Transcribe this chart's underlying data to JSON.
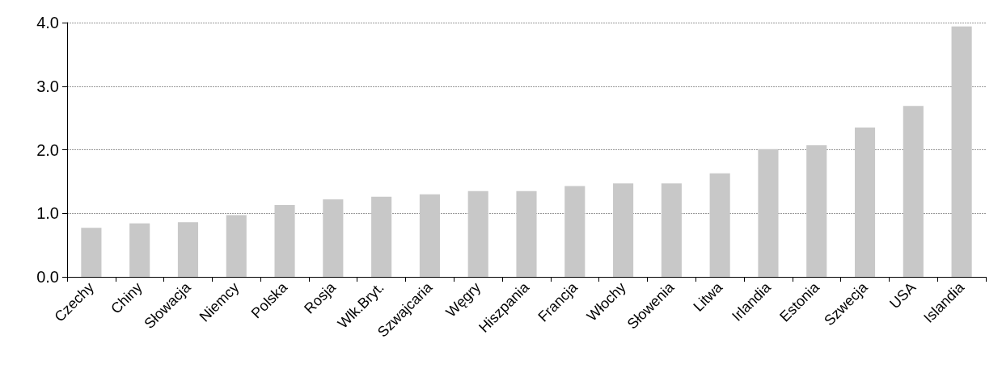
{
  "chart_data": {
    "type": "bar",
    "categories": [
      "Czechy",
      "Chiny",
      "Słowacja",
      "Niemcy",
      "Polska",
      "Rosja",
      "Wlk.Bryt.",
      "Szwajcaria",
      "Węgry",
      "Hiszpania",
      "Francja",
      "Włochy",
      "Słowenia",
      "Litwa",
      "Irlandia",
      "Estonia",
      "Szwecja",
      "USA",
      "Islandia"
    ],
    "values": [
      0.77,
      0.84,
      0.86,
      0.97,
      1.13,
      1.22,
      1.26,
      1.3,
      1.35,
      1.35,
      1.43,
      1.47,
      1.47,
      1.63,
      2.01,
      2.07,
      2.35,
      2.69,
      3.94
    ],
    "color": "#c8c8c8",
    "ylim": [
      0,
      4
    ],
    "yticks": [
      {
        "value": 0,
        "label": "0.0"
      },
      {
        "value": 1,
        "label": "1.0"
      },
      {
        "value": 2,
        "label": "2.0"
      },
      {
        "value": 3,
        "label": "3.0"
      },
      {
        "value": 4,
        "label": "4.0"
      }
    ],
    "grid": "y"
  }
}
